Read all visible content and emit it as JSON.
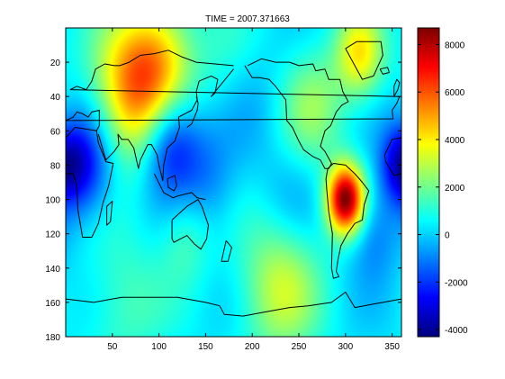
{
  "figure": {
    "title": "TIME =  2007.371663"
  },
  "map": {
    "x_ticks": [
      "50",
      "100",
      "150",
      "200",
      "250",
      "300",
      "350"
    ],
    "y_ticks": [
      "20",
      "40",
      "60",
      "80",
      "100",
      "120",
      "140",
      "160",
      "180"
    ],
    "x_range": [
      0,
      360
    ],
    "y_range": [
      0,
      180
    ],
    "y_reversed": true,
    "colormap": "jet",
    "coastline_color": "#000000",
    "blobs": [
      {
        "lon": 300,
        "lat": 100,
        "value": 8500,
        "spread": 14
      },
      {
        "lon": 75,
        "lat": 35,
        "value": 5200,
        "spread": 30
      },
      {
        "lon": 105,
        "lat": 18,
        "value": 2500,
        "spread": 25
      },
      {
        "lon": 315,
        "lat": 15,
        "value": 3500,
        "spread": 18
      },
      {
        "lon": 265,
        "lat": 45,
        "value": 2000,
        "spread": 25
      },
      {
        "lon": 180,
        "lat": 30,
        "value": 800,
        "spread": 30
      },
      {
        "lon": 200,
        "lat": 40,
        "value": -1000,
        "spread": 25
      },
      {
        "lon": 110,
        "lat": 65,
        "value": -3500,
        "spread": 22
      },
      {
        "lon": 20,
        "lat": 80,
        "value": -3000,
        "spread": 22
      },
      {
        "lon": 358,
        "lat": 80,
        "value": -2500,
        "spread": 15
      },
      {
        "lon": 150,
        "lat": 90,
        "value": -1500,
        "spread": 25
      },
      {
        "lon": 240,
        "lat": 100,
        "value": -800,
        "spread": 25
      },
      {
        "lon": 330,
        "lat": 120,
        "value": -1500,
        "spread": 20
      },
      {
        "lon": 230,
        "lat": 150,
        "value": 2800,
        "spread": 30
      },
      {
        "lon": 60,
        "lat": 160,
        "value": 1200,
        "spread": 30
      },
      {
        "lon": 130,
        "lat": 120,
        "value": 1500,
        "spread": 20
      }
    ]
  },
  "colorbar": {
    "ticks": [
      "8000",
      "6000",
      "4000",
      "2000",
      "0",
      "-2000",
      "-4000"
    ],
    "tick_values": [
      8000,
      6000,
      4000,
      2000,
      0,
      -2000,
      -4000
    ],
    "range": [
      -4300,
      8700
    ],
    "colormap": "jet"
  }
}
